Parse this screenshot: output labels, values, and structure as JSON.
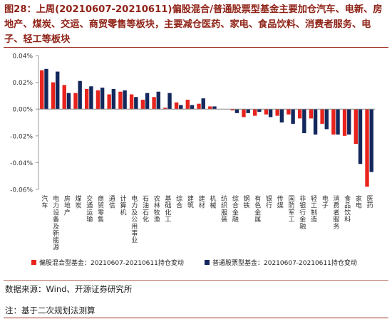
{
  "figure": {
    "title": "图28：上周(20210607-20210611)偏股混合/普通股票型基金主要加仓汽车、电新、房地产、煤炭、交运、商贸零售等板块，主要减仓医药、家电、食品饮料、消费者服务、电子、轻工等板块",
    "source": "数据来源：Wind、开源证券研究所",
    "note": "注：基于二次规划法测算"
  },
  "chart_data": {
    "type": "bar",
    "categories": [
      "汽车",
      "电力设备及新能源",
      "房地产",
      "煤炭",
      "交通运输",
      "商贸零售",
      "通信",
      "计算机",
      "电力及公用事业",
      "石油石化",
      "农林牧渔",
      "基础化工",
      "综合",
      "建筑",
      "建材",
      "机械",
      "纺织服装",
      "综合金融",
      "钢铁",
      "有色金属",
      "银行",
      "传媒",
      "国防军工",
      "非银行金融",
      "轻工制造",
      "电子",
      "消费者服务",
      "食品饮料",
      "家电",
      "医药"
    ],
    "series": [
      {
        "name": "偏股混合型基金：20210607-20210611持仓变动",
        "color": "#e8231d",
        "values": [
          0.029,
          0.02,
          0.018,
          0.012,
          0.015,
          0.014,
          0.011,
          0.013,
          0.011,
          0.007,
          0.009,
          0.001,
          0.005,
          0.007,
          0.004,
          0.002,
          0.0,
          -0.001,
          -0.006,
          -0.005,
          -0.004,
          -0.005,
          -0.004,
          -0.007,
          -0.007,
          -0.011,
          -0.019,
          -0.02,
          -0.026,
          -0.058
        ]
      },
      {
        "name": "普通股票型基金：20210607-20210611持仓变动",
        "color": "#13285c",
        "values": [
          0.03,
          0.028,
          0.012,
          0.021,
          0.017,
          0.016,
          0.015,
          0.014,
          0.009,
          0.012,
          0.013,
          0.012,
          0.003,
          0.003,
          0.008,
          0.002,
          0.0,
          -0.003,
          -0.003,
          -0.002,
          -0.006,
          -0.01,
          -0.011,
          -0.018,
          -0.019,
          -0.015,
          -0.019,
          -0.019,
          -0.041,
          -0.047
        ]
      }
    ],
    "yticks": [
      0.04,
      0.02,
      0.0,
      -0.02,
      -0.04,
      -0.06
    ],
    "ytick_labels": [
      "0.04%",
      "0.02%",
      "0.00%",
      "-0.02%",
      "-0.04%",
      "-0.06%"
    ],
    "ylim": [
      -0.06,
      0.04
    ],
    "xlabel": "",
    "ylabel": "",
    "grid": false,
    "legend_position": "bottom"
  }
}
